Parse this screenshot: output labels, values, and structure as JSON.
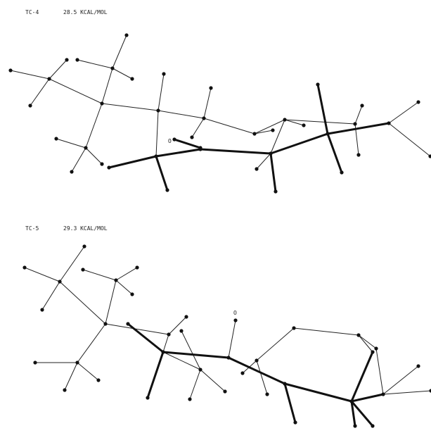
{
  "panels": [
    {
      "label": "TC-4",
      "energy": "28.5 KCAL/MOL",
      "atom_label": "O"
    },
    {
      "label": "TC-5",
      "energy": "29.3 KCAL/MOL",
      "atom_label": "O"
    }
  ]
}
